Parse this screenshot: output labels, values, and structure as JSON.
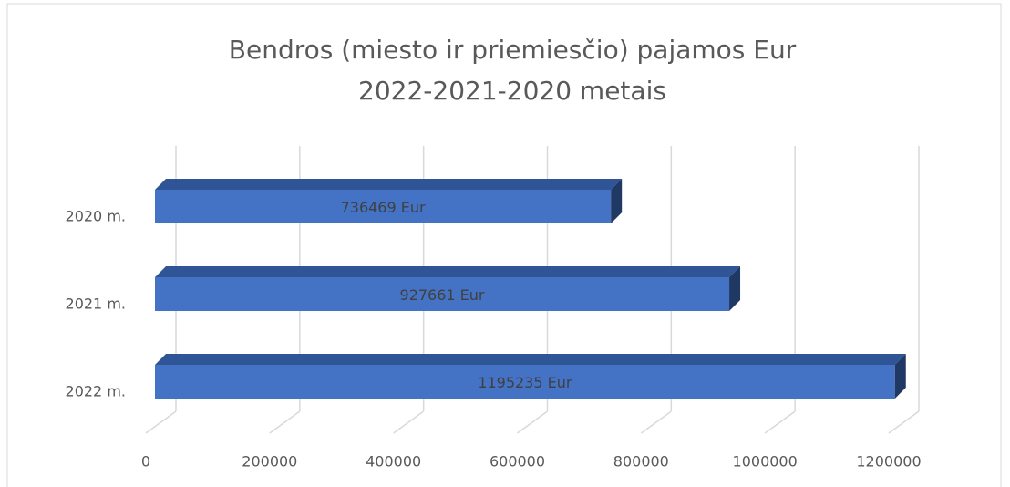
{
  "chart_data": {
    "type": "bar3d_horizontal",
    "title": [
      "Bendros (miesto ir priemiesčio) pajamos Eur",
      "2022-2021-2020 metais"
    ],
    "categories": [
      "2020 m.",
      "2021 m.",
      "2022 m."
    ],
    "values": [
      736469,
      927661,
      1195235
    ],
    "value_labels": [
      "736469 Eur",
      "927661 Eur",
      "1195235 Eur"
    ],
    "color": "#4472c4",
    "xlim": [
      0,
      1200000
    ],
    "xticks": [
      0,
      200000,
      400000,
      600000,
      800000,
      1000000,
      1200000
    ],
    "grid": true
  }
}
